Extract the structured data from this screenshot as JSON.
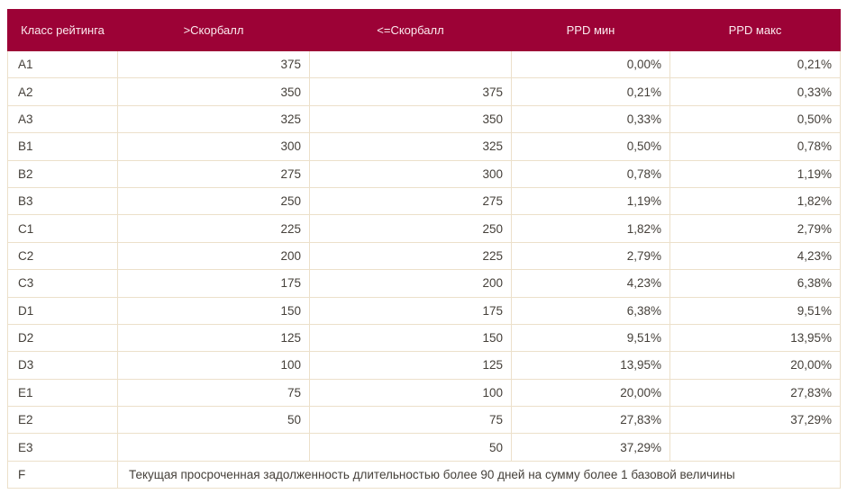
{
  "table": {
    "name": "rating-class-ppd-table",
    "columns": [
      {
        "key": "rating-class",
        "label": "Класс рейтинга"
      },
      {
        "key": "score-gt",
        "label": ">Скорбалл"
      },
      {
        "key": "score-lte",
        "label": "<=Скорбалл"
      },
      {
        "key": "ppd-min",
        "label": "PPD мин"
      },
      {
        "key": "ppd-max",
        "label": "PPD макс"
      }
    ],
    "rows": [
      {
        "cells": [
          "A1",
          "375",
          "",
          "0,00%",
          "0,21%"
        ]
      },
      {
        "cells": [
          "A2",
          "350",
          "375",
          "0,21%",
          "0,33%"
        ]
      },
      {
        "cells": [
          "A3",
          "325",
          "350",
          "0,33%",
          "0,50%"
        ]
      },
      {
        "cells": [
          "B1",
          "300",
          "325",
          "0,50%",
          "0,78%"
        ]
      },
      {
        "cells": [
          "B2",
          "275",
          "300",
          "0,78%",
          "1,19%"
        ]
      },
      {
        "cells": [
          "B3",
          "250",
          "275",
          "1,19%",
          "1,82%"
        ]
      },
      {
        "cells": [
          "C1",
          "225",
          "250",
          "1,82%",
          "2,79%"
        ]
      },
      {
        "cells": [
          "C2",
          "200",
          "225",
          "2,79%",
          "4,23%"
        ]
      },
      {
        "cells": [
          "C3",
          "175",
          "200",
          "4,23%",
          "6,38%"
        ]
      },
      {
        "cells": [
          "D1",
          "150",
          "175",
          "6,38%",
          "9,51%"
        ]
      },
      {
        "cells": [
          "D2",
          "125",
          "150",
          "9,51%",
          "13,95%"
        ]
      },
      {
        "cells": [
          "D3",
          "100",
          "125",
          "13,95%",
          "20,00%"
        ]
      },
      {
        "cells": [
          "E1",
          "75",
          "100",
          "20,00%",
          "27,83%"
        ]
      },
      {
        "cells": [
          "E2",
          "50",
          "75",
          "27,83%",
          "37,29%"
        ]
      },
      {
        "cells": [
          "E3",
          "",
          "50",
          "37,29%",
          ""
        ]
      },
      {
        "cells": [
          "F",
          "Текущая просроченная задолженность длительностью более 90 дней на сумму более 1 базовой величины"
        ],
        "colspan_last": 4
      }
    ]
  },
  "colors": {
    "header_bg": "#9c0236",
    "header_text": "#fbeaef",
    "header_divider": "#ad2a53",
    "cell_border": "#ece0ca",
    "body_text": "#45403a",
    "page_bg": "#ffffff"
  }
}
